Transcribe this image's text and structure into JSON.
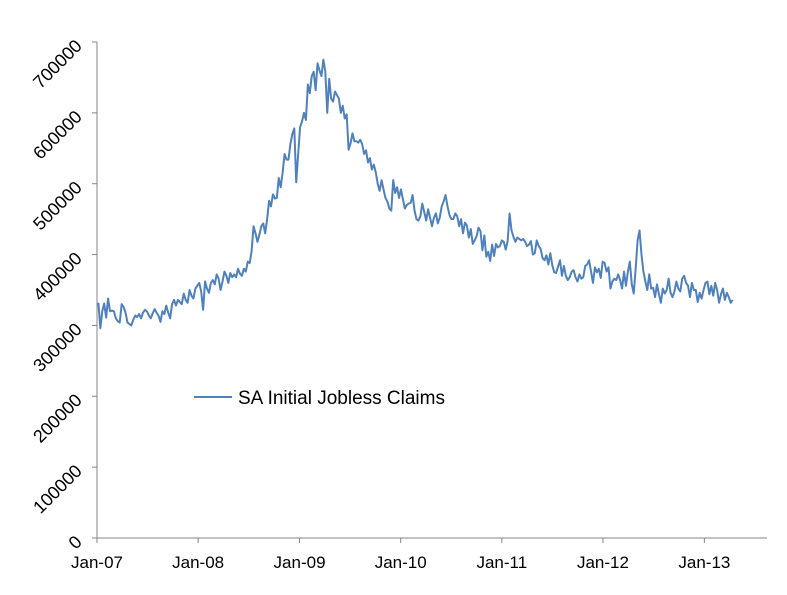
{
  "chart_data": {
    "type": "line",
    "title": "",
    "xlabel": "",
    "ylabel": "",
    "ylim": [
      0,
      700000
    ],
    "yticks": [
      0,
      100000,
      200000,
      300000,
      400000,
      500000,
      600000,
      700000
    ],
    "xticks": [
      "Jan-07",
      "Jan-08",
      "Jan-09",
      "Jan-10",
      "Jan-11",
      "Jan-12",
      "Jan-13"
    ],
    "grid": false,
    "legend_placement": "center-left",
    "line_color": "#4F81BD",
    "series": [
      {
        "name": "SA Initial Jobless Claims",
        "x_start": "2007-01-06",
        "x_step_days": 7,
        "values": [
          332000,
          296000,
          320000,
          331000,
          311000,
          338000,
          320000,
          321000,
          320000,
          310000,
          306000,
          304000,
          330000,
          326000,
          318000,
          304000,
          302000,
          300000,
          308000,
          314000,
          312000,
          316000,
          310000,
          318000,
          322000,
          320000,
          314000,
          310000,
          317000,
          323000,
          318000,
          314000,
          305000,
          320000,
          316000,
          328000,
          318000,
          310000,
          330000,
          336000,
          328000,
          336000,
          333000,
          330000,
          345000,
          336000,
          332000,
          350000,
          342000,
          338000,
          352000,
          356000,
          360000,
          348000,
          322000,
          362000,
          352000,
          346000,
          360000,
          364000,
          358000,
          372000,
          366000,
          350000,
          362000,
          376000,
          370000,
          360000,
          374000,
          368000,
          372000,
          368000,
          380000,
          373000,
          370000,
          380000,
          376000,
          390000,
          388000,
          405000,
          440000,
          430000,
          418000,
          428000,
          440000,
          444000,
          430000,
          450000,
          476000,
          468000,
          485000,
          479000,
          480000,
          508000,
          495000,
          516000,
          542000,
          534000,
          534000,
          556000,
          570000,
          578000,
          502000,
          542000,
          580000,
          588000,
          600000,
          590000,
          640000,
          628000,
          652000,
          658000,
          632000,
          670000,
          660000,
          652000,
          675000,
          658000,
          600000,
          648000,
          620000,
          616000,
          630000,
          625000,
          620000,
          600000,
          610000,
          592000,
          598000,
          548000,
          557000,
          571000,
          560000,
          560000,
          558000,
          562000,
          556000,
          542000,
          547000,
          530000,
          536000,
          520000,
          527000,
          516000,
          500000,
          490000,
          505000,
          492000,
          480000,
          475000,
          465000,
          462000,
          505000,
          487000,
          495000,
          480000,
          492000,
          478000,
          465000,
          470000,
          472000,
          473000,
          484000,
          462000,
          450000,
          448000,
          454000,
          472000,
          460000,
          448000,
          464000,
          452000,
          440000,
          452000,
          458000,
          444000,
          452000,
          468000,
          475000,
          484000,
          468000,
          456000,
          450000,
          450000,
          458000,
          454000,
          440000,
          450000,
          430000,
          445000,
          441000,
          424000,
          436000,
          415000,
          420000,
          426000,
          438000,
          433000,
          406000,
          427000,
          397000,
          404000,
          391000,
          414000,
          398000,
          415000,
          410000,
          412000,
          420000,
          418000,
          407000,
          419000,
          458000,
          434000,
          425000,
          418000,
          424000,
          422000,
          420000,
          422000,
          418000,
          412000,
          414000,
          419000,
          400000,
          402000,
          420000,
          412000,
          408000,
          395000,
          392000,
          399000,
          386000,
          402000,
          385000,
          375000,
          374000,
          383000,
          392000,
          370000,
          384000,
          370000,
          364000,
          368000,
          376000,
          378000,
          368000,
          362000,
          372000,
          366000,
          368000,
          384000,
          386000,
          392000,
          376000,
          360000,
          382000,
          375000,
          380000,
          367000,
          390000,
          388000,
          376000,
          382000,
          352000,
          362000,
          366000,
          364000,
          372000,
          364000,
          352000,
          376000,
          356000,
          376000,
          390000,
          358000,
          345000,
          380000,
          420000,
          434000,
          400000,
          376000,
          362000,
          350000,
          372000,
          352000,
          353000,
          340000,
          358000,
          344000,
          332000,
          352000,
          345000,
          350000,
          366000,
          346000,
          340000,
          348000,
          362000,
          352000,
          348000,
          366000,
          370000,
          360000,
          356000,
          340000,
          360000,
          350000,
          350000,
          333000,
          346000,
          338000,
          350000,
          360000,
          362000,
          344000,
          356000,
          342000,
          360000,
          350000,
          332000,
          344000,
          352000,
          336000,
          346000,
          340000,
          332000,
          336000
        ]
      }
    ]
  }
}
